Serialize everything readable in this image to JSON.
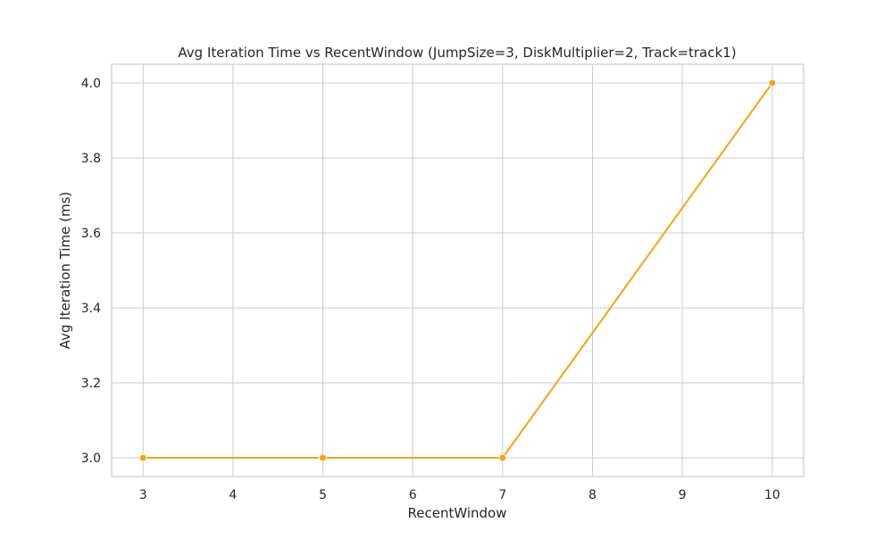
{
  "chart_data": {
    "type": "line",
    "title": "Avg Iteration Time vs RecentWindow (JumpSize=3, DiskMultiplier=2, Track=track1)",
    "xlabel": "RecentWindow",
    "ylabel": "Avg Iteration Time (ms)",
    "x": [
      3,
      5,
      7,
      10
    ],
    "series": [
      {
        "values": [
          3.0,
          3.0,
          3.0,
          4.0
        ],
        "color": "#f5a40f"
      }
    ],
    "xlim": [
      2.65,
      10.35
    ],
    "ylim": [
      2.95,
      4.05
    ],
    "xticks": [
      3,
      4,
      5,
      6,
      7,
      8,
      9,
      10
    ],
    "xtick_labels": [
      "3",
      "4",
      "5",
      "6",
      "7",
      "8",
      "9",
      "10"
    ],
    "yticks": [
      3.0,
      3.2,
      3.4,
      3.6,
      3.8,
      4.0
    ],
    "ytick_labels": [
      "3.0",
      "3.2",
      "3.4",
      "3.6",
      "3.8",
      "4.0"
    ],
    "grid": true,
    "marker": "circle",
    "legend": "none"
  }
}
